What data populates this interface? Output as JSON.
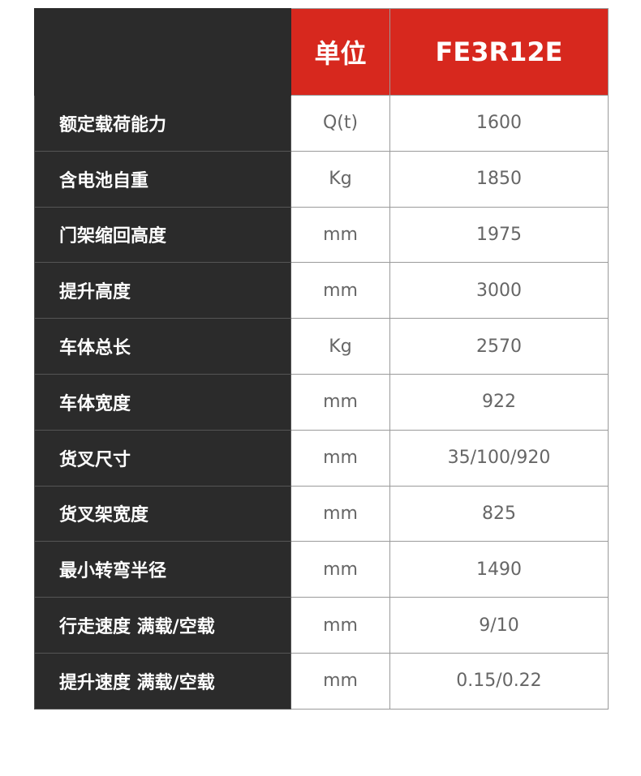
{
  "header": {
    "unit_label": "单位",
    "model": "FE3R12E"
  },
  "colors": {
    "header_red": "#d7281e",
    "label_bg": "#2b2b2b"
  },
  "rows": [
    {
      "label": "额定载荷能力",
      "unit": "Q(t)",
      "value": "1600"
    },
    {
      "label": "含电池自重",
      "unit": "Kg",
      "value": "1850"
    },
    {
      "label": "门架缩回高度",
      "unit": "mm",
      "value": "1975"
    },
    {
      "label": "提升高度",
      "unit": "mm",
      "value": "3000"
    },
    {
      "label": "车体总长",
      "unit": "Kg",
      "value": "2570"
    },
    {
      "label": "车体宽度",
      "unit": "mm",
      "value": "922"
    },
    {
      "label": "货叉尺寸",
      "unit": "mm",
      "value": "35/100/920"
    },
    {
      "label": "货叉架宽度",
      "unit": "mm",
      "value": "825"
    },
    {
      "label": "最小转弯半径",
      "unit": "mm",
      "value": "1490"
    },
    {
      "label": "行走速度 满载/空载",
      "unit": "mm",
      "value": "9/10"
    },
    {
      "label": "提升速度 满载/空载",
      "unit": "mm",
      "value": "0.15/0.22"
    }
  ]
}
